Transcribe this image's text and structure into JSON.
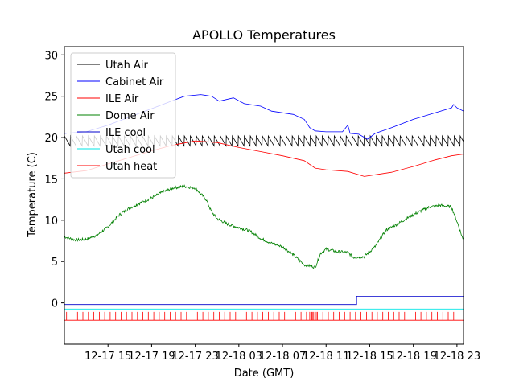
{
  "chart_data": {
    "type": "line",
    "title": "APOLLO Temperatures",
    "xlabel": "Date (GMT)",
    "ylabel": "Temperature (C)",
    "x_unit": "hours since 12-17 11:00 GMT",
    "xlim": [
      0,
      36.6
    ],
    "ylim": [
      -5,
      31
    ],
    "yticks": [
      0,
      5,
      10,
      15,
      20,
      25,
      30
    ],
    "xticks": [
      {
        "x": 4,
        "label": "12-17 15"
      },
      {
        "x": 8,
        "label": "12-17 19"
      },
      {
        "x": 12,
        "label": "12-17 23"
      },
      {
        "x": 16,
        "label": "12-18 03"
      },
      {
        "x": 20,
        "label": "12-18 07"
      },
      {
        "x": 24,
        "label": "12-18 11"
      },
      {
        "x": 28,
        "label": "12-18 15"
      },
      {
        "x": 32,
        "label": "12-18 19"
      },
      {
        "x": 36,
        "label": "12-18 23"
      }
    ],
    "legend_position": "top-left",
    "series": [
      {
        "name": "Utah Air",
        "color": "#000000",
        "style": "sawtooth",
        "points": [
          [
            0,
            19.6
          ],
          [
            36.6,
            19.6
          ]
        ],
        "amplitude": 0.6,
        "period": 0.55
      },
      {
        "name": "Cabinet Air",
        "color": "#0000ff",
        "points": [
          [
            0,
            20.5
          ],
          [
            2,
            20.7
          ],
          [
            4,
            21.5
          ],
          [
            6,
            22.5
          ],
          [
            8,
            23.5
          ],
          [
            10,
            24.5
          ],
          [
            11,
            25
          ],
          [
            12.5,
            25.2
          ],
          [
            13.5,
            25
          ],
          [
            14.2,
            24.4
          ],
          [
            15.5,
            24.8
          ],
          [
            16.5,
            24.1
          ],
          [
            18,
            23.8
          ],
          [
            19,
            23.2
          ],
          [
            21,
            22.8
          ],
          [
            22,
            22.2
          ],
          [
            22.5,
            21.2
          ],
          [
            23,
            20.8
          ],
          [
            24,
            20.7
          ],
          [
            25.5,
            20.7
          ],
          [
            26,
            21.5
          ],
          [
            26.2,
            20.5
          ],
          [
            27,
            20.4
          ],
          [
            27.8,
            19.8
          ],
          [
            28.5,
            20.5
          ],
          [
            30,
            21.2
          ],
          [
            32,
            22.2
          ],
          [
            34,
            23
          ],
          [
            35.5,
            23.6
          ],
          [
            35.7,
            24
          ],
          [
            36,
            23.6
          ],
          [
            36.6,
            23.2
          ]
        ]
      },
      {
        "name": "ILE Air",
        "color": "#ff0000",
        "points": [
          [
            0,
            15.7
          ],
          [
            2,
            16
          ],
          [
            4,
            16.8
          ],
          [
            6,
            17.6
          ],
          [
            8,
            18.4
          ],
          [
            10,
            19.1
          ],
          [
            12,
            19.6
          ],
          [
            14,
            19.4
          ],
          [
            16,
            18.8
          ],
          [
            18,
            18.3
          ],
          [
            20,
            17.8
          ],
          [
            22,
            17.2
          ],
          [
            23,
            16.3
          ],
          [
            24,
            16.1
          ],
          [
            26,
            15.9
          ],
          [
            27.5,
            15.3
          ],
          [
            28.5,
            15.5
          ],
          [
            30,
            15.8
          ],
          [
            32,
            16.5
          ],
          [
            34,
            17.3
          ],
          [
            35.5,
            17.8
          ],
          [
            36.6,
            18
          ]
        ]
      },
      {
        "name": "Dome Air",
        "color": "#008000",
        "noise": 0.35,
        "points": [
          [
            0,
            8
          ],
          [
            1,
            7.6
          ],
          [
            2,
            7.7
          ],
          [
            3,
            8.2
          ],
          [
            4,
            9.2
          ],
          [
            5,
            10.6
          ],
          [
            6,
            11.5
          ],
          [
            7,
            12.1
          ],
          [
            8,
            12.7
          ],
          [
            9,
            13.4
          ],
          [
            10,
            13.9
          ],
          [
            11,
            14.1
          ],
          [
            12,
            13.9
          ],
          [
            12.5,
            13.2
          ],
          [
            13,
            12.5
          ],
          [
            13.5,
            11
          ],
          [
            14,
            10.2
          ],
          [
            15,
            9.5
          ],
          [
            16,
            9.1
          ],
          [
            17,
            8.7
          ],
          [
            18,
            7.8
          ],
          [
            19,
            7.2
          ],
          [
            20,
            6.8
          ],
          [
            21,
            5.8
          ],
          [
            22,
            4.6
          ],
          [
            22.5,
            4.5
          ],
          [
            23,
            4.3
          ],
          [
            23.5,
            6
          ],
          [
            24,
            6.5
          ],
          [
            25,
            6.2
          ],
          [
            26,
            6.1
          ],
          [
            26.5,
            5.5
          ],
          [
            27.5,
            5.6
          ],
          [
            28.5,
            6.8
          ],
          [
            29.5,
            8.8
          ],
          [
            30.5,
            9.5
          ],
          [
            31.5,
            10.3
          ],
          [
            32.5,
            11
          ],
          [
            33.5,
            11.6
          ],
          [
            34.5,
            11.8
          ],
          [
            35.5,
            11.6
          ],
          [
            36.1,
            9.5
          ],
          [
            36.6,
            7.5
          ]
        ]
      },
      {
        "name": "ILE cool",
        "color": "#0000cc",
        "style": "step",
        "points": [
          [
            0,
            -0.2
          ],
          [
            26.8,
            -0.2
          ],
          [
            26.8,
            0.8
          ],
          [
            36.6,
            0.8
          ]
        ]
      },
      {
        "name": "Utah cool",
        "color": "#00e5e5",
        "points": [
          [
            0,
            -0.75
          ],
          [
            36.6,
            -0.75
          ]
        ]
      },
      {
        "name": "Utah heat",
        "color": "#ff0000",
        "style": "pulse",
        "base": -2.1,
        "top": -1.1,
        "period": 0.5,
        "stripe_extra": [
          [
            22.5,
            23.2
          ]
        ]
      }
    ]
  }
}
